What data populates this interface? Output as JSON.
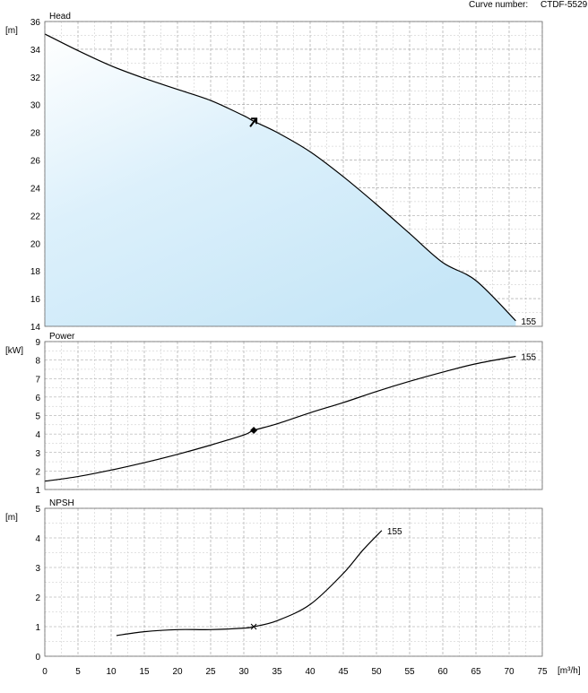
{
  "header": {
    "curve_number_label": "Curve number:",
    "curve_number_value": "CTDF-5529"
  },
  "x_axis": {
    "unit": "[m³/h]",
    "ticks": [
      "0",
      "5",
      "10",
      "15",
      "20",
      "25",
      "30",
      "35",
      "40",
      "45",
      "50",
      "55",
      "60",
      "65",
      "70",
      "75"
    ],
    "range": [
      0,
      75
    ]
  },
  "chart_data": [
    {
      "type": "area",
      "title": "Head",
      "ylabel": "[m]",
      "xlim": [
        0,
        75
      ],
      "ylim": [
        14,
        36
      ],
      "y_ticks": [
        "14",
        "16",
        "18",
        "20",
        "22",
        "24",
        "26",
        "28",
        "30",
        "32",
        "34",
        "36"
      ],
      "grid": true,
      "series": [
        {
          "name": "155",
          "x": [
            0,
            5,
            10,
            15,
            20,
            25,
            30,
            31.5,
            35,
            40,
            45,
            50,
            55,
            60,
            65,
            71
          ],
          "y": [
            35.1,
            33.9,
            32.8,
            31.9,
            31.1,
            30.3,
            29.2,
            28.8,
            28.0,
            26.6,
            24.8,
            22.8,
            20.7,
            18.6,
            17.3,
            14.4
          ]
        }
      ],
      "duty_point": {
        "x": 31.5,
        "y": 28.8,
        "marker": "arrow"
      }
    },
    {
      "type": "line",
      "title": "Power",
      "ylabel": "[kW]",
      "xlim": [
        0,
        75
      ],
      "ylim": [
        1,
        9
      ],
      "y_ticks": [
        "1",
        "2",
        "3",
        "4",
        "5",
        "6",
        "7",
        "8",
        "9"
      ],
      "grid": true,
      "series": [
        {
          "name": "155",
          "x": [
            0,
            5,
            10,
            15,
            20,
            25,
            30,
            31.5,
            35,
            40,
            45,
            50,
            55,
            60,
            65,
            71
          ],
          "y": [
            1.45,
            1.7,
            2.05,
            2.45,
            2.9,
            3.4,
            3.95,
            4.2,
            4.55,
            5.15,
            5.7,
            6.3,
            6.85,
            7.35,
            7.8,
            8.2
          ]
        }
      ],
      "duty_point": {
        "x": 31.5,
        "y": 4.2,
        "marker": "diamond"
      }
    },
    {
      "type": "line",
      "title": "NPSH",
      "ylabel": "[m]",
      "xlim": [
        0,
        75
      ],
      "ylim": [
        0,
        5
      ],
      "y_ticks": [
        "0",
        "1",
        "2",
        "3",
        "4",
        "5"
      ],
      "grid": true,
      "series": [
        {
          "name": "155",
          "x": [
            10.8,
            15,
            20,
            25,
            30,
            31.5,
            35,
            40,
            45,
            48,
            50.8
          ],
          "y": [
            0.7,
            0.83,
            0.9,
            0.9,
            0.95,
            1.0,
            1.2,
            1.75,
            2.8,
            3.6,
            4.25
          ]
        }
      ],
      "duty_point": {
        "x": 31.5,
        "y": 1.0,
        "marker": "x"
      }
    }
  ]
}
